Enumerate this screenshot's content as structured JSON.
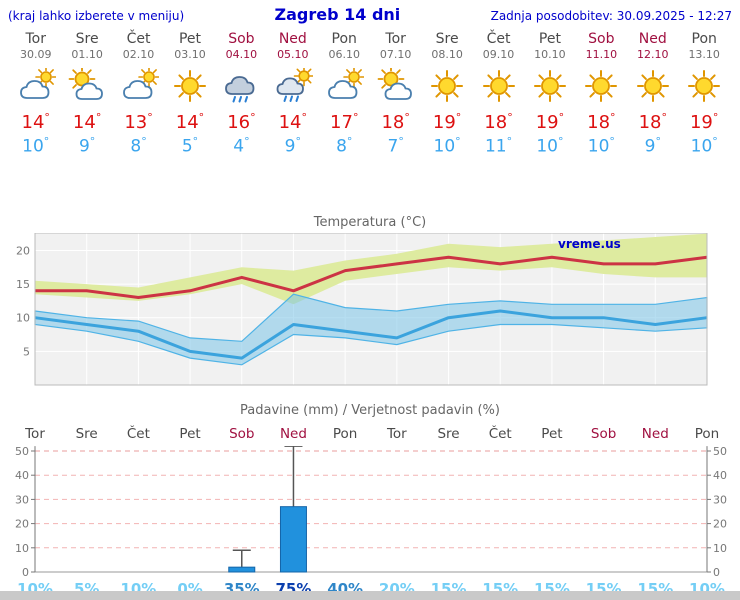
{
  "header": {
    "menu_hint": "(kraj lahko izberete v meniju)",
    "title": "Zagreb 14 dni",
    "last_update": "Zadnja posodobitev: 30.09.2025 - 12:27"
  },
  "colors": {
    "header_blue": "#0000cc",
    "weekend": "#a01040",
    "day_label": "#4a4a4a",
    "date_label": "#6f6f6f",
    "temp_max": "#dd1111",
    "temp_min": "#3aa5ee",
    "chart_title": "#666666",
    "axis_label": "#777777",
    "temp_plot_bg": "#f1f1f1",
    "temp_grid": "#ffffff",
    "temp_band_max": "#dcea9b",
    "temp_band_min": "#7cc4e8",
    "temp_line_max": "#cc3344",
    "temp_line_min": "#3ba3dd",
    "precip_bar": "#2191dd",
    "precip_bar_border": "#1565a8",
    "precip_grid": "#f2b3b3",
    "precip_axis": "#777777",
    "whisker": "#555555",
    "prob_tiers": [
      "#74cef5",
      "#2f86c8",
      "#0b3fae"
    ]
  },
  "forecast": {
    "days": [
      {
        "name": "Tor",
        "date": "30.09",
        "icon": "mostly-cloudy",
        "tmax": "14",
        "tmin": "10",
        "weekend": false
      },
      {
        "name": "Sre",
        "date": "01.10",
        "icon": "partly-cloudy",
        "tmax": "14",
        "tmin": "9",
        "weekend": false
      },
      {
        "name": "Čet",
        "date": "02.10",
        "icon": "mostly-cloudy",
        "tmax": "13",
        "tmin": "8",
        "weekend": false
      },
      {
        "name": "Pet",
        "date": "03.10",
        "icon": "sunny",
        "tmax": "14",
        "tmin": "5",
        "weekend": false
      },
      {
        "name": "Sob",
        "date": "04.10",
        "icon": "rain",
        "tmax": "16",
        "tmin": "4",
        "weekend": true
      },
      {
        "name": "Ned",
        "date": "05.10",
        "icon": "showers",
        "tmax": "14",
        "tmin": "9",
        "weekend": true
      },
      {
        "name": "Pon",
        "date": "06.10",
        "icon": "mostly-cloudy",
        "tmax": "17",
        "tmin": "8",
        "weekend": false
      },
      {
        "name": "Tor",
        "date": "07.10",
        "icon": "partly-cloudy",
        "tmax": "18",
        "tmin": "7",
        "weekend": false
      },
      {
        "name": "Sre",
        "date": "08.10",
        "icon": "sunny",
        "tmax": "19",
        "tmin": "10",
        "weekend": false
      },
      {
        "name": "Čet",
        "date": "09.10",
        "icon": "sunny",
        "tmax": "18",
        "tmin": "11",
        "weekend": false
      },
      {
        "name": "Pet",
        "date": "10.10",
        "icon": "sunny",
        "tmax": "19",
        "tmin": "10",
        "weekend": false
      },
      {
        "name": "Sob",
        "date": "11.10",
        "icon": "sunny",
        "tmax": "18",
        "tmin": "10",
        "weekend": true
      },
      {
        "name": "Ned",
        "date": "12.10",
        "icon": "sunny",
        "tmax": "18",
        "tmin": "9",
        "weekend": true
      },
      {
        "name": "Pon",
        "date": "13.10",
        "icon": "sunny",
        "tmax": "19",
        "tmin": "10",
        "weekend": false
      }
    ]
  },
  "chart_data": [
    {
      "type": "line",
      "title": "Temperatura (°C)",
      "watermark": "vreme.us",
      "categories": [
        "Tor",
        "Sre",
        "Čet",
        "Pet",
        "Sob",
        "Ned",
        "Pon",
        "Tor",
        "Sre",
        "Čet",
        "Pet",
        "Sob",
        "Ned",
        "Pon"
      ],
      "ylim": [
        0,
        22
      ],
      "yticks": [
        5,
        10,
        15,
        20
      ],
      "grid": true,
      "series": [
        {
          "name": "max_temp",
          "values": [
            14,
            14,
            13,
            14,
            16,
            14,
            17,
            18,
            19,
            18,
            19,
            18,
            18,
            19
          ]
        },
        {
          "name": "min_temp",
          "values": [
            10,
            9,
            8,
            5,
            4,
            9,
            8,
            7,
            10,
            11,
            10,
            10,
            9,
            10
          ]
        },
        {
          "name": "max_range_high",
          "values": [
            15.5,
            15,
            14.5,
            16,
            17.5,
            17,
            18.5,
            19.5,
            21,
            20.5,
            21,
            21.5,
            22,
            22.5
          ]
        },
        {
          "name": "max_range_low",
          "values": [
            13.5,
            13,
            12.5,
            13.5,
            15,
            12,
            15.5,
            16.5,
            17.5,
            17,
            17.5,
            16.5,
            16,
            16
          ]
        },
        {
          "name": "min_range_high",
          "values": [
            11,
            10,
            9.5,
            7,
            6.5,
            13.5,
            11.5,
            11,
            12,
            12.5,
            12,
            12,
            12,
            13
          ]
        },
        {
          "name": "min_range_low",
          "values": [
            9,
            8,
            6.5,
            4,
            3,
            7.5,
            7,
            6,
            8,
            9,
            9,
            8.5,
            8,
            8.5
          ]
        }
      ]
    },
    {
      "type": "bar",
      "title": "Padavine (mm) / Verjetnost padavin (%)",
      "categories": [
        "Tor",
        "Sre",
        "Čet",
        "Pet",
        "Sob",
        "Ned",
        "Pon",
        "Tor",
        "Sre",
        "Čet",
        "Pet",
        "Sob",
        "Ned",
        "Pon"
      ],
      "ylim": [
        0,
        52
      ],
      "yticks": [
        0,
        10,
        20,
        30,
        40,
        50
      ],
      "values_mm": [
        0,
        0,
        0,
        0,
        2,
        27,
        0,
        0,
        0,
        0,
        0,
        0,
        0,
        0
      ],
      "range_high_mm": [
        0,
        0,
        0,
        0,
        9,
        52,
        0,
        0,
        0,
        0,
        0,
        0,
        0,
        0
      ],
      "probabilities": [
        "10%",
        "5%",
        "10%",
        "0%",
        "35%",
        "75%",
        "40%",
        "20%",
        "15%",
        "15%",
        "15%",
        "15%",
        "15%",
        "10%"
      ],
      "prob_tiers": [
        0,
        0,
        0,
        0,
        1,
        2,
        1,
        0,
        0,
        0,
        0,
        0,
        0,
        0
      ]
    }
  ]
}
